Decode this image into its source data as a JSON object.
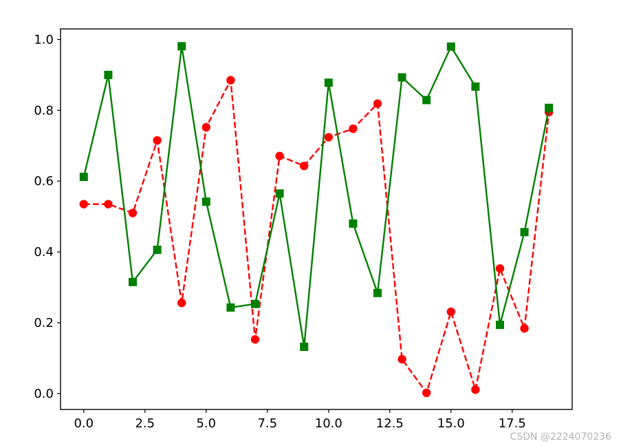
{
  "watermark": "CSDN @2224070236",
  "chart_data": {
    "type": "line",
    "title": "",
    "xlabel": "",
    "ylabel": "",
    "xlim": [
      -0.95,
      19.95
    ],
    "ylim": [
      -0.045,
      1.03
    ],
    "grid": false,
    "legend": "none",
    "xticks": [
      0.0,
      2.5,
      5.0,
      7.5,
      10.0,
      12.5,
      15.0,
      17.5
    ],
    "xtick_labels": [
      "0.0",
      "2.5",
      "5.0",
      "7.5",
      "10.0",
      "12.5",
      "15.0",
      "17.5"
    ],
    "yticks": [
      0.0,
      0.2,
      0.4,
      0.6,
      0.8,
      1.0
    ],
    "ytick_labels": [
      "0.0",
      "0.2",
      "0.4",
      "0.6",
      "0.8",
      "1.0"
    ],
    "x": [
      0,
      1,
      2,
      3,
      4,
      5,
      6,
      7,
      8,
      9,
      10,
      11,
      12,
      13,
      14,
      15,
      16,
      17,
      18,
      19
    ],
    "series": [
      {
        "color": "#ff0000",
        "line_style": "dashed",
        "marker": "circle",
        "values": [
          0.535,
          0.535,
          0.51,
          0.715,
          0.256,
          0.752,
          0.885,
          0.153,
          0.671,
          0.643,
          0.724,
          0.748,
          0.819,
          0.097,
          0.002,
          0.231,
          0.011,
          0.353,
          0.184,
          0.795
        ]
      },
      {
        "color": "#008000",
        "line_style": "solid",
        "marker": "square",
        "values": [
          0.612,
          0.9,
          0.315,
          0.406,
          0.981,
          0.542,
          0.243,
          0.253,
          0.565,
          0.132,
          0.878,
          0.48,
          0.284,
          0.893,
          0.829,
          0.98,
          0.867,
          0.194,
          0.456,
          0.807
        ]
      }
    ]
  }
}
